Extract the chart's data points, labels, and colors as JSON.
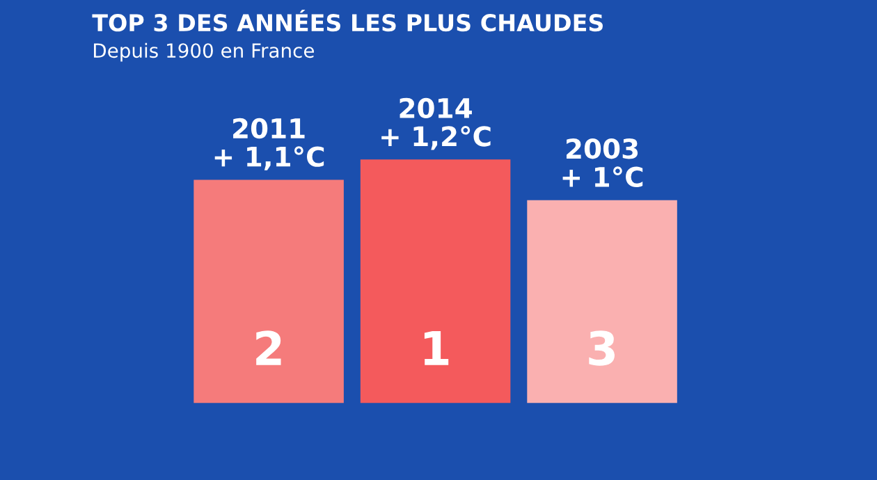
{
  "chart_data": {
    "type": "bar",
    "title": "TOP 3 DES ANNÉES LES PLUS CHAUDES",
    "subtitle": "Depuis 1900 en France",
    "categories": [
      "2",
      "1",
      "3"
    ],
    "values": [
      1.1,
      1.2,
      1.0
    ],
    "colors": [
      "#f57b7b",
      "#f45a5c",
      "#fab0b0"
    ],
    "value_labels": [
      "2011\n+ 1,1°C",
      "2014\n+ 1,2°C",
      "2003\n+ 1°C"
    ],
    "tick_labels": "x",
    "grid": false,
    "legend": false
  }
}
